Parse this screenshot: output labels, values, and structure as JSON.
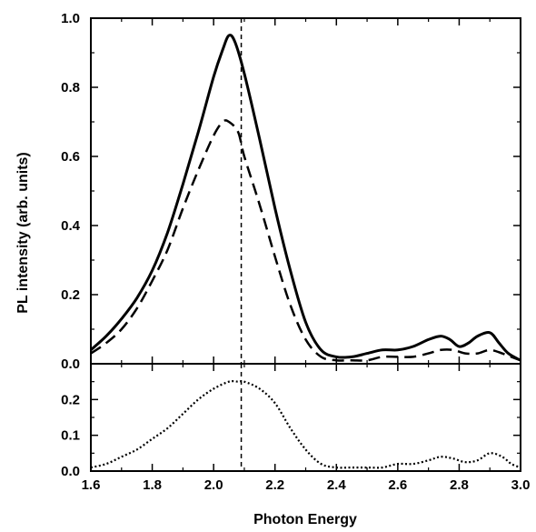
{
  "chart_data": [
    {
      "type": "line",
      "panel": "top",
      "xlabel": "",
      "ylabel": "PL intensity (arb. units)",
      "xlim": [
        1.6,
        3.0
      ],
      "ylim": [
        0.0,
        1.0
      ],
      "yticks": [
        0.0,
        0.2,
        0.4,
        0.6,
        0.8,
        1.0
      ],
      "ytick_labels": [
        "0.0",
        "0.2",
        "0.4",
        "0.6",
        "0.8",
        "1.0"
      ],
      "marker_line_x": 2.09,
      "series": [
        {
          "style": "solid",
          "x": [
            1.6,
            1.65,
            1.7,
            1.75,
            1.8,
            1.85,
            1.9,
            1.95,
            2.0,
            2.03,
            2.05,
            2.07,
            2.1,
            2.15,
            2.2,
            2.25,
            2.3,
            2.35,
            2.4,
            2.45,
            2.5,
            2.55,
            2.6,
            2.65,
            2.7,
            2.74,
            2.77,
            2.8,
            2.83,
            2.86,
            2.9,
            2.93,
            2.96,
            3.0
          ],
          "y": [
            0.04,
            0.08,
            0.13,
            0.19,
            0.27,
            0.38,
            0.52,
            0.67,
            0.83,
            0.91,
            0.95,
            0.93,
            0.84,
            0.65,
            0.45,
            0.27,
            0.12,
            0.04,
            0.02,
            0.02,
            0.03,
            0.04,
            0.04,
            0.05,
            0.07,
            0.08,
            0.07,
            0.05,
            0.06,
            0.08,
            0.09,
            0.06,
            0.03,
            0.01
          ]
        },
        {
          "style": "dashed",
          "x": [
            1.6,
            1.65,
            1.7,
            1.75,
            1.8,
            1.85,
            1.9,
            1.95,
            2.0,
            2.03,
            2.05,
            2.08,
            2.1,
            2.15,
            2.2,
            2.25,
            2.3,
            2.35,
            2.4,
            2.45,
            2.5,
            2.55,
            2.6,
            2.65,
            2.7,
            2.74,
            2.78,
            2.82,
            2.86,
            2.9,
            2.94,
            2.97,
            3.0
          ],
          "y": [
            0.03,
            0.06,
            0.1,
            0.16,
            0.24,
            0.33,
            0.45,
            0.56,
            0.66,
            0.7,
            0.7,
            0.67,
            0.6,
            0.46,
            0.31,
            0.17,
            0.07,
            0.02,
            0.01,
            0.01,
            0.01,
            0.02,
            0.02,
            0.02,
            0.03,
            0.04,
            0.04,
            0.03,
            0.03,
            0.04,
            0.03,
            0.02,
            0.01
          ]
        }
      ]
    },
    {
      "type": "line",
      "panel": "bottom",
      "xlabel": "Photon Energy",
      "ylabel": "",
      "xlim": [
        1.6,
        3.0
      ],
      "ylim": [
        0.0,
        0.3
      ],
      "xticks": [
        1.6,
        1.8,
        2.0,
        2.2,
        2.4,
        2.6,
        2.8,
        3.0
      ],
      "xtick_labels": [
        "1.6",
        "1.8",
        "2.0",
        "2.2",
        "2.4",
        "2.6",
        "2.8",
        "3.0"
      ],
      "yticks": [
        0.0,
        0.1,
        0.2
      ],
      "ytick_labels": [
        "0.0",
        "0.1",
        "0.2"
      ],
      "marker_line_x": 2.09,
      "series": [
        {
          "style": "dotted",
          "x": [
            1.6,
            1.65,
            1.7,
            1.75,
            1.8,
            1.85,
            1.9,
            1.95,
            2.0,
            2.05,
            2.08,
            2.1,
            2.15,
            2.2,
            2.25,
            2.3,
            2.35,
            2.4,
            2.45,
            2.5,
            2.55,
            2.6,
            2.65,
            2.7,
            2.74,
            2.78,
            2.82,
            2.86,
            2.9,
            2.94,
            2.97,
            3.0
          ],
          "y": [
            0.01,
            0.02,
            0.04,
            0.06,
            0.09,
            0.12,
            0.16,
            0.2,
            0.23,
            0.25,
            0.25,
            0.25,
            0.23,
            0.19,
            0.12,
            0.06,
            0.02,
            0.01,
            0.01,
            0.01,
            0.01,
            0.02,
            0.02,
            0.03,
            0.04,
            0.035,
            0.025,
            0.03,
            0.05,
            0.04,
            0.02,
            0.01
          ]
        }
      ]
    }
  ]
}
